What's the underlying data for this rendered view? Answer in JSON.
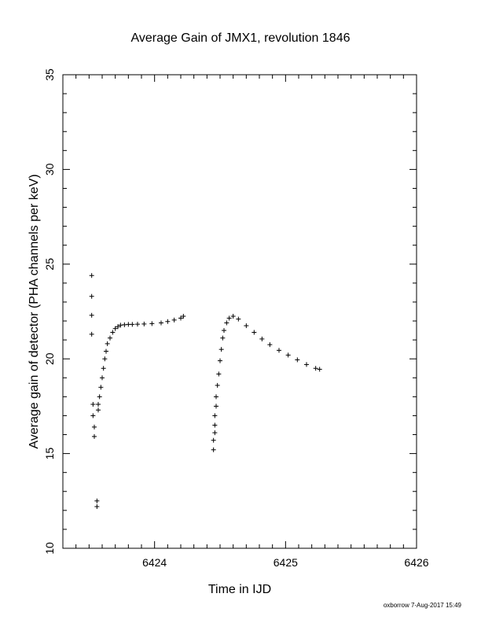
{
  "chart_data": {
    "type": "scatter",
    "title": "Average Gain of JMX1, revolution 1846",
    "xlabel": "Time in IJD",
    "ylabel": "Average gain of detector (PHA channels per keV)",
    "xlim": [
      6423.3,
      6426
    ],
    "ylim": [
      10,
      35
    ],
    "x_ticks": [
      6424,
      6425,
      6426
    ],
    "y_ticks": [
      10,
      15,
      20,
      25,
      30,
      35
    ],
    "grid": false,
    "marker": "+",
    "series": [
      {
        "x": [
          6423.52,
          6423.52,
          6423.52,
          6423.52,
          6423.53,
          6423.53,
          6423.54,
          6423.54,
          6423.56,
          6423.56,
          6423.57,
          6423.57,
          6423.58,
          6423.59,
          6423.6,
          6423.61,
          6423.62,
          6423.63,
          6423.64,
          6423.66,
          6423.68,
          6423.7,
          6423.72,
          6423.74,
          6423.77,
          6423.8,
          6423.83,
          6423.87,
          6423.92,
          6423.98,
          6424.05,
          6424.1,
          6424.15,
          6424.2,
          6424.22
        ],
        "y": [
          24.4,
          23.3,
          22.3,
          21.3,
          17.6,
          17.0,
          16.4,
          15.9,
          12.5,
          12.2,
          17.3,
          17.6,
          18.0,
          18.5,
          19.0,
          19.5,
          20.0,
          20.4,
          20.8,
          21.1,
          21.4,
          21.6,
          21.7,
          21.78,
          21.8,
          21.82,
          21.82,
          21.83,
          21.84,
          21.86,
          21.9,
          21.97,
          22.05,
          22.15,
          22.25
        ]
      },
      {
        "x": [
          6424.45,
          6424.45,
          6424.46,
          6424.46,
          6424.46,
          6424.47,
          6424.47,
          6424.48,
          6424.49,
          6424.5,
          6424.51,
          6424.52,
          6424.53,
          6424.55,
          6424.57,
          6424.6,
          6424.64,
          6424.7,
          6424.76,
          6424.82,
          6424.88,
          6424.95,
          6425.02,
          6425.09,
          6425.16,
          6425.23,
          6425.26
        ],
        "y": [
          15.2,
          15.7,
          16.1,
          16.5,
          17.0,
          17.5,
          18.0,
          18.6,
          19.2,
          19.9,
          20.5,
          21.1,
          21.5,
          21.9,
          22.15,
          22.25,
          22.1,
          21.75,
          21.4,
          21.05,
          20.75,
          20.45,
          20.2,
          19.95,
          19.7,
          19.5,
          19.45
        ]
      }
    ]
  },
  "footer": {
    "credit": "oxborrow  7-Aug-2017 15:49"
  }
}
